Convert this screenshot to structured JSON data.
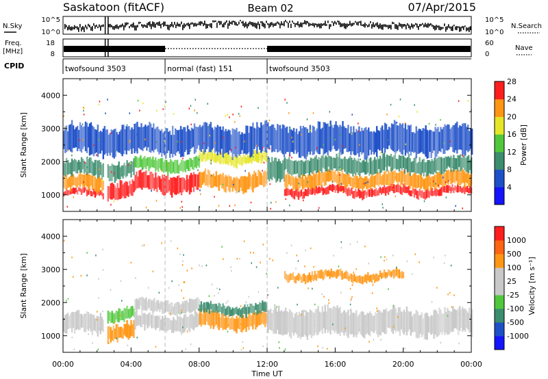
{
  "header": {
    "site": "Saskatoon (fitACF)",
    "beam": "Beam 02",
    "date": "07/Apr/2015"
  },
  "strips": {
    "nsky_label": "N.Sky",
    "nsky_ticks": [
      "10^5",
      "10^0"
    ],
    "nsearch_ticks": [
      "10^5",
      "10^0"
    ],
    "nsearch_label": "N.Search",
    "freq_label_1": "Freq.",
    "freq_label_2": "[MHz]",
    "freq_ticks": [
      "18",
      "8"
    ],
    "nave_ticks": [
      "60",
      "0"
    ],
    "nave_label": "Nave",
    "cpid_label": "CPID",
    "cpid_segments": [
      {
        "label": "twofsound 3503",
        "start_h": 0,
        "end_h": 6
      },
      {
        "label": "normal (fast) 151",
        "start_h": 6,
        "end_h": 12
      },
      {
        "label": "twofsound 3503",
        "start_h": 12,
        "end_h": 24
      }
    ]
  },
  "chart_data": [
    {
      "type": "heatmap",
      "name": "power",
      "ylabel": "Slant Range [km]",
      "yticks": [
        1000,
        2000,
        3000,
        4000
      ],
      "ylim": [
        500,
        4500
      ],
      "xlim": [
        0,
        24
      ],
      "colorbar": {
        "label": "Power [dB]",
        "ticks": [
          "4",
          "8",
          "12",
          "16",
          "20",
          "24",
          "28"
        ],
        "colors": [
          "#1414ff",
          "#1e50c8",
          "#3c8c6e",
          "#50c83c",
          "#e6e628",
          "#ff9614",
          "#ff1e1e"
        ]
      },
      "bands": [
        {
          "start_h": 0.0,
          "end_h": 2.4,
          "center_km": 1050,
          "width_km": 180,
          "color": "#ff1e1e"
        },
        {
          "start_h": 0.0,
          "end_h": 2.4,
          "center_km": 1350,
          "width_km": 450,
          "color": "#ff9614"
        },
        {
          "start_h": 0.0,
          "end_h": 2.4,
          "center_km": 1800,
          "width_km": 500,
          "color": "#3c8c6e"
        },
        {
          "start_h": 2.6,
          "end_h": 4.2,
          "center_km": 1150,
          "width_km": 550,
          "color": "#ff1e1e"
        },
        {
          "start_h": 2.6,
          "end_h": 4.2,
          "center_km": 1750,
          "width_km": 500,
          "color": "#3c8c6e"
        },
        {
          "start_h": 4.2,
          "end_h": 8.0,
          "center_km": 1350,
          "width_km": 550,
          "color": "#ff1e1e"
        },
        {
          "start_h": 4.2,
          "end_h": 8.0,
          "center_km": 1900,
          "width_km": 400,
          "color": "#50c83c"
        },
        {
          "start_h": 8.0,
          "end_h": 12.0,
          "center_km": 1400,
          "width_km": 500,
          "color": "#ff9614"
        },
        {
          "start_h": 8.0,
          "end_h": 12.0,
          "center_km": 2100,
          "width_km": 350,
          "color": "#e6e628"
        },
        {
          "start_h": 12.0,
          "end_h": 13.0,
          "center_km": 1700,
          "width_km": 700,
          "color": "#3c8c6e"
        },
        {
          "start_h": 13.0,
          "end_h": 24.0,
          "center_km": 1100,
          "width_km": 250,
          "color": "#ff1e1e"
        },
        {
          "start_h": 13.0,
          "end_h": 24.0,
          "center_km": 1450,
          "width_km": 450,
          "color": "#ff9614"
        },
        {
          "start_h": 13.0,
          "end_h": 24.0,
          "center_km": 1900,
          "width_km": 500,
          "color": "#3c8c6e"
        },
        {
          "start_h": 0.0,
          "end_h": 24.0,
          "center_km": 2650,
          "width_km": 900,
          "color": "#1e50c8"
        }
      ]
    },
    {
      "type": "heatmap",
      "name": "velocity",
      "ylabel": "Slant Range [km]",
      "yticks": [
        1000,
        2000,
        3000,
        4000
      ],
      "ylim": [
        500,
        4500
      ],
      "xlim": [
        0,
        24
      ],
      "xticks": [
        "00:00",
        "04:00",
        "08:00",
        "12:00",
        "16:00",
        "20:00",
        "00:00"
      ],
      "xlabel": "Time UT",
      "colorbar": {
        "label": "Velocity [m s⁻¹]",
        "ticks": [
          "1000",
          "500",
          "100",
          "25",
          "-25",
          "-100",
          "-500",
          "-1000"
        ],
        "colors": [
          "#1414ff",
          "#1e50c8",
          "#3c8c6e",
          "#50c83c",
          "#c8c8c8",
          "#c8c8c8",
          "#ff9614",
          "#ff6414",
          "#ff1e1e"
        ]
      },
      "bands": [
        {
          "start_h": 0.0,
          "end_h": 2.4,
          "center_km": 1350,
          "width_km": 600,
          "color": "#c8c8c8"
        },
        {
          "start_h": 2.6,
          "end_h": 4.2,
          "center_km": 1150,
          "width_km": 500,
          "color": "#ff9614"
        },
        {
          "start_h": 2.6,
          "end_h": 4.2,
          "center_km": 1650,
          "width_km": 400,
          "color": "#50c83c"
        },
        {
          "start_h": 4.2,
          "end_h": 8.0,
          "center_km": 1400,
          "width_km": 500,
          "color": "#c8c8c8"
        },
        {
          "start_h": 4.2,
          "end_h": 8.0,
          "center_km": 1900,
          "width_km": 400,
          "color": "#c8c8c8"
        },
        {
          "start_h": 8.0,
          "end_h": 12.0,
          "center_km": 1450,
          "width_km": 500,
          "color": "#ff9614"
        },
        {
          "start_h": 8.0,
          "end_h": 12.0,
          "center_km": 1800,
          "width_km": 300,
          "color": "#3c8c6e"
        },
        {
          "start_h": 12.0,
          "end_h": 24.0,
          "center_km": 1400,
          "width_km": 800,
          "color": "#c8c8c8"
        },
        {
          "start_h": 13.0,
          "end_h": 20.0,
          "center_km": 2800,
          "width_km": 250,
          "color": "#ff9614"
        }
      ]
    }
  ]
}
